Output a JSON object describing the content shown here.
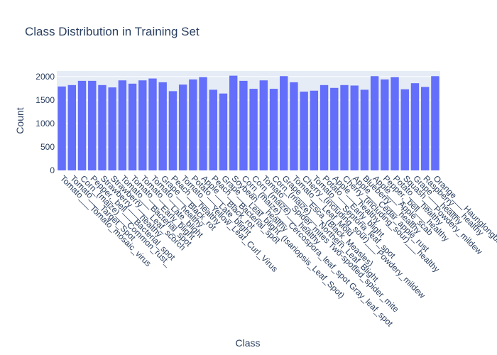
{
  "chart_data": {
    "type": "bar",
    "title": "Class Distribution in Training Set",
    "x_label": "Class",
    "y_label": "Count",
    "color": "#636efa",
    "grid": true,
    "categories": [
      "Tomato___Tomato_mosaic_virus",
      "Tomato___Target_Spot",
      "Corn_(maize)___Common_rust_",
      "Pepper,_bell___Bacterial_spot",
      "Strawberry___healthy",
      "Strawberry___Leaf_scorch",
      "Tomato___Bacterial_spot",
      "Tomato___Early_blight",
      "Tomato___Late_blight",
      "Tomato___healthy",
      "Grape___Black_rot",
      "Peach___healthy",
      "Tomato___Yellow_Leaf_Curl_Virus",
      "Potato___Late_blight",
      "Apple___Black_rot",
      "Peach___Bacterial_spot",
      "Grape___Leaf_blight_(Isariopsis_Leaf_Spot)",
      "Soybean___healthy",
      "Corn_(maize)___Cercospora_leaf_spot Gray_leaf_spot",
      "Corn_(maize)___healthy",
      "Tomato___Spider_mites Two-spotted_spider_mite",
      "Corn_(maize)___Northern_Leaf_Blight",
      "Grape___Esca_(Black_Measles)",
      "Tomato___Leaf_Mold",
      "Cherry_(including_sour)___Powdery_mildew",
      "Tomato___Septoria_leaf_spot",
      "Potato___Early_blight",
      "Apple___healthy",
      "Cherry_(including_sour)___healthy",
      "Apple___Cedar_apple_rust",
      "Blueberry___healthy",
      "Apple___Apple_scab",
      "Pepper,_bell___healthy",
      "Potato___healthy",
      "Squash___Powdery_mildew",
      "Grape___healthy",
      "Raspberry___healthy",
      "Orange___Haunglongbing_(Citrus_greening)"
    ],
    "values": [
      1790,
      1820,
      1910,
      1910,
      1820,
      1770,
      1920,
      1850,
      1920,
      1960,
      1880,
      1690,
      1830,
      1940,
      1990,
      1720,
      1640,
      2020,
      1910,
      1740,
      1920,
      1740,
      2010,
      1880,
      1680,
      1700,
      1820,
      1760,
      1820,
      1810,
      1720,
      2010,
      1940,
      1990,
      1730,
      1860,
      1780,
      2010
    ],
    "ylim": [
      0,
      2120
    ],
    "yticks": [
      0,
      500,
      1000,
      1500,
      2000
    ]
  }
}
